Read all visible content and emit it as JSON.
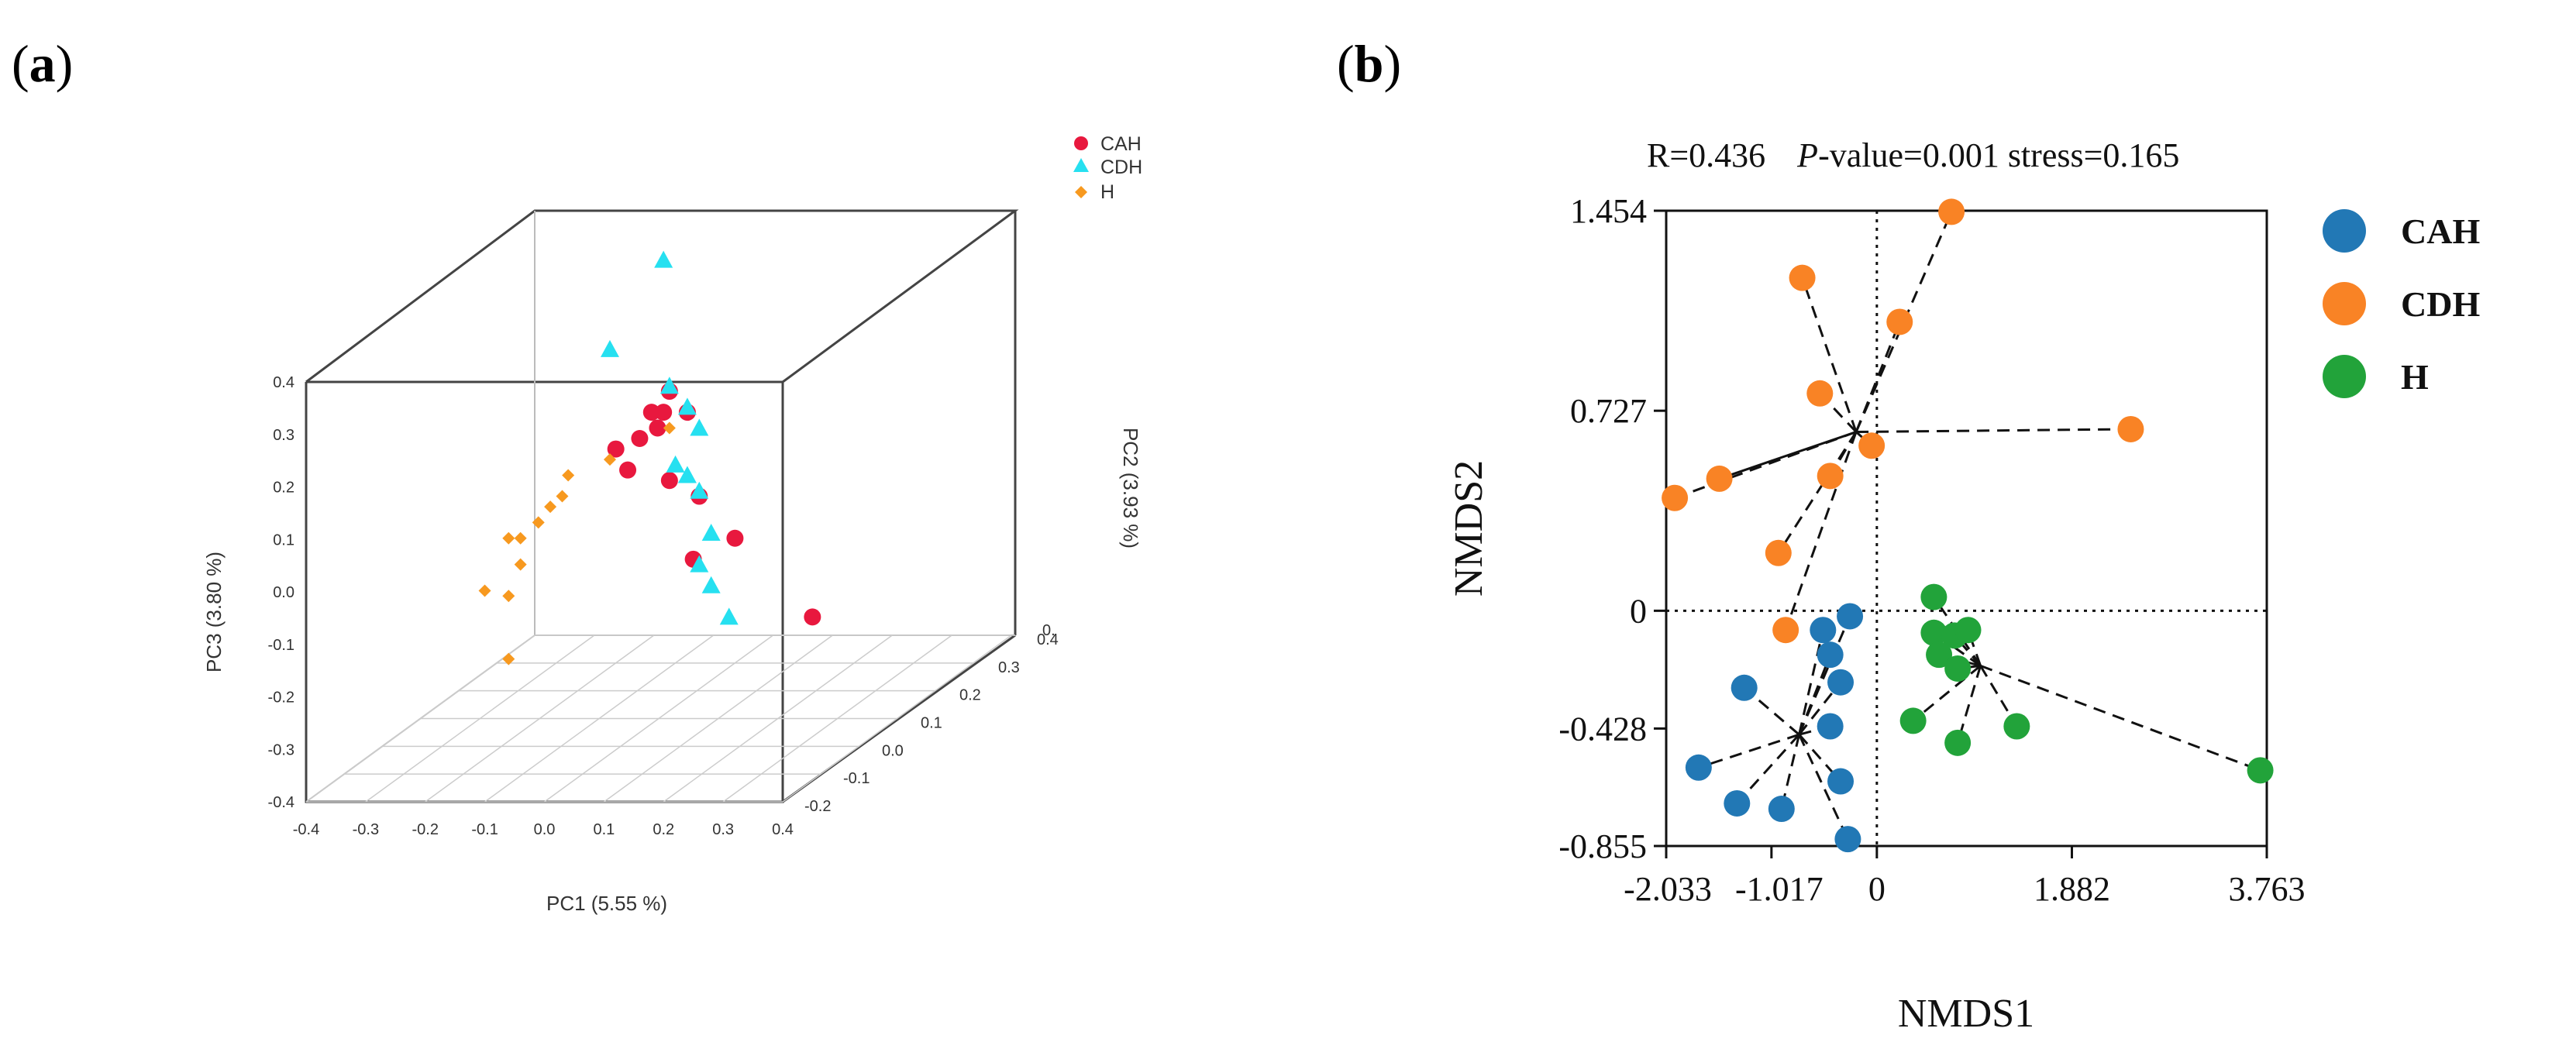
{
  "panels": {
    "a": {
      "label": "(a)",
      "letter": "a"
    },
    "b": {
      "label": "(b)",
      "letter": "b"
    }
  },
  "chart_data": [
    {
      "type": "scatter",
      "projection": "3d",
      "axes": {
        "x": {
          "label": "PC1 (5.55 %)",
          "range": [
            -0.4,
            0.4
          ],
          "ticks": [
            "-0.4",
            "-0.3",
            "-0.2",
            "-0.1",
            "0.0",
            "0.1",
            "0.2",
            "0.3",
            "0.4"
          ]
        },
        "y": {
          "label": "PC2 (3.93 %)",
          "range": [
            -0.2,
            0.4
          ],
          "ticks": [
            "-0.2",
            "-0.1",
            "0.0",
            "0.1",
            "0.2",
            "0.3",
            "0.4"
          ],
          "top_tick": "0."
        },
        "z": {
          "label": "PC3 (3.80 %)",
          "range": [
            -0.4,
            0.4
          ],
          "ticks": [
            "-0.4",
            "-0.3",
            "-0.2",
            "-0.1",
            "0.0",
            "0.1",
            "0.2",
            "0.3",
            "0.4"
          ]
        }
      },
      "legend": {
        "position": "top-right",
        "entries": [
          {
            "name": "CAH",
            "marker": "circle",
            "color": "#e8183e"
          },
          {
            "name": "CDH",
            "marker": "triangle",
            "color": "#26e0f0"
          },
          {
            "name": "H",
            "marker": "diamond",
            "color": "#f7991f"
          }
        ]
      },
      "series": [
        {
          "name": "CAH",
          "points": [
            [
              0.05,
              0.05,
              0.25
            ],
            [
              0.02,
              0.05,
              0.21
            ],
            [
              0.03,
              0.05,
              0.18
            ],
            [
              0.0,
              0.05,
              0.16
            ],
            [
              0.08,
              0.05,
              0.21
            ],
            [
              0.04,
              0.05,
              0.21
            ],
            [
              -0.04,
              0.05,
              0.14
            ],
            [
              -0.02,
              0.05,
              0.1
            ],
            [
              0.05,
              0.05,
              0.08
            ],
            [
              0.1,
              0.05,
              0.05
            ],
            [
              0.16,
              0.05,
              -0.03
            ],
            [
              0.09,
              0.05,
              -0.07
            ],
            [
              0.29,
              0.05,
              -0.18
            ]
          ]
        },
        {
          "name": "CDH",
          "points": [
            [
              0.04,
              0.05,
              0.5
            ],
            [
              -0.05,
              0.05,
              0.33
            ],
            [
              0.05,
              0.05,
              0.26
            ],
            [
              0.08,
              0.05,
              0.22
            ],
            [
              0.1,
              0.05,
              0.18
            ],
            [
              0.06,
              0.05,
              0.11
            ],
            [
              0.08,
              0.05,
              0.09
            ],
            [
              0.1,
              0.05,
              0.06
            ],
            [
              0.12,
              0.05,
              -0.02
            ],
            [
              0.1,
              0.05,
              -0.08
            ],
            [
              0.12,
              0.05,
              -0.12
            ],
            [
              0.15,
              0.05,
              -0.18
            ]
          ]
        },
        {
          "name": "H",
          "points": [
            [
              0.05,
              0.05,
              0.18
            ],
            [
              -0.05,
              0.05,
              0.12
            ],
            [
              -0.12,
              0.05,
              0.09
            ],
            [
              -0.13,
              0.05,
              0.05
            ],
            [
              -0.15,
              0.05,
              0.03
            ],
            [
              -0.17,
              0.05,
              0.0
            ],
            [
              -0.22,
              0.05,
              -0.03
            ],
            [
              -0.2,
              0.05,
              -0.03
            ],
            [
              -0.2,
              0.05,
              -0.08
            ],
            [
              -0.22,
              0.05,
              -0.14
            ],
            [
              -0.26,
              0.05,
              -0.13
            ],
            [
              -0.22,
              0.05,
              -0.26
            ]
          ]
        }
      ]
    },
    {
      "type": "scatter",
      "annotation": {
        "r": "R=0.436",
        "p_label": "P",
        "p_rest": "-value=0.001 stress=0.165"
      },
      "xlabel": "NMDS1",
      "ylabel": "NMDS2",
      "xlim": [
        -2.033,
        3.763
      ],
      "ylim": [
        -0.855,
        1.454
      ],
      "xticks": [
        -2.033,
        -1.017,
        0,
        1.882,
        3.763
      ],
      "xtick_labels": [
        "-2.033",
        "-1.017",
        "0",
        "1.882",
        "3.763"
      ],
      "yticks": [
        -0.855,
        -0.428,
        0,
        0.727,
        1.454
      ],
      "ytick_labels": [
        "-0.855",
        "-0.428",
        "0",
        "0.727",
        "1.454"
      ],
      "reference_lines": {
        "x": 0,
        "y": 0,
        "style": "dotted"
      },
      "legend": {
        "position": "right",
        "entries": [
          {
            "name": "CAH",
            "color": "#2278b5"
          },
          {
            "name": "CDH",
            "color": "#f98325"
          },
          {
            "name": "H",
            "color": "#22a33a"
          }
        ]
      },
      "series": [
        {
          "name": "CAH",
          "color": "#2278b5",
          "centroid": [
            -0.75,
            -0.45
          ],
          "points": [
            [
              -0.26,
              -0.02
            ],
            [
              -0.52,
              -0.07
            ],
            [
              -0.45,
              -0.16
            ],
            [
              -0.35,
              -0.26
            ],
            [
              -1.28,
              -0.28
            ],
            [
              -0.45,
              -0.42
            ],
            [
              -1.72,
              -0.57
            ],
            [
              -0.35,
              -0.62
            ],
            [
              -1.35,
              -0.7
            ],
            [
              -0.92,
              -0.72
            ],
            [
              -0.28,
              -0.83
            ]
          ]
        },
        {
          "name": "CDH",
          "color": "#f98325",
          "centroid": [
            -0.2,
            0.65
          ],
          "points": [
            [
              0.72,
              1.45
            ],
            [
              -0.72,
              1.21
            ],
            [
              0.22,
              1.05
            ],
            [
              -0.55,
              0.79
            ],
            [
              2.45,
              0.66
            ],
            [
              -0.05,
              0.6
            ],
            [
              -1.52,
              0.48
            ],
            [
              -0.45,
              0.49
            ],
            [
              -1.95,
              0.41
            ],
            [
              -0.95,
              0.21
            ],
            [
              -0.88,
              -0.07
            ]
          ]
        },
        {
          "name": "H",
          "color": "#22a33a",
          "centroid": [
            1.0,
            -0.2
          ],
          "points": [
            [
              0.55,
              0.05
            ],
            [
              0.55,
              -0.08
            ],
            [
              0.75,
              -0.09
            ],
            [
              0.88,
              -0.07
            ],
            [
              0.6,
              -0.16
            ],
            [
              0.78,
              -0.21
            ],
            [
              0.35,
              -0.4
            ],
            [
              1.35,
              -0.42
            ],
            [
              0.78,
              -0.48
            ],
            [
              3.7,
              -0.58
            ]
          ]
        }
      ]
    }
  ]
}
